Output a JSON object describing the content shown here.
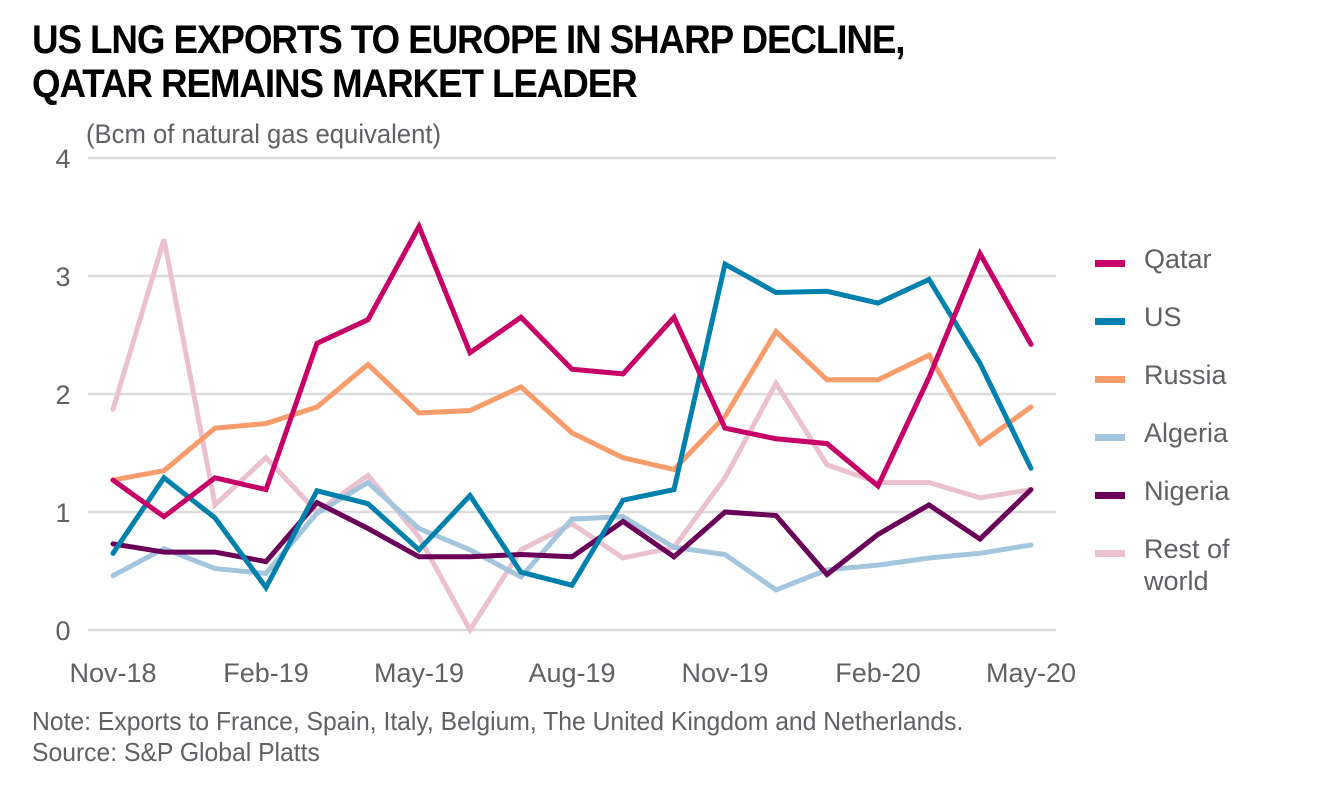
{
  "title_lines": [
    "US LNG EXPORTS TO EUROPE IN SHARP DECLINE,",
    "QATAR REMAINS MARKET LEADER"
  ],
  "footer": {
    "note": "Note: Exports to France, Spain, Italy, Belgium, The United Kingdom and Netherlands.",
    "source": "Source: S&P Global Platts"
  },
  "chart_data": {
    "type": "line",
    "title": "US LNG EXPORTS TO EUROPE IN SHARP DECLINE, QATAR REMAINS MARKET LEADER",
    "ylabel": "(Bcm of natural gas equivalent)",
    "xlabel": "",
    "ylim": [
      0,
      4
    ],
    "yticks": [
      "0",
      "1",
      "2",
      "3",
      "4"
    ],
    "grid": true,
    "legend_position": "right",
    "x": [
      "Nov-18",
      "Dec-18",
      "Jan-19",
      "Feb-19",
      "Mar-19",
      "Apr-19",
      "May-19",
      "Jun-19",
      "Jul-19",
      "Aug-19",
      "Sep-19",
      "Oct-19",
      "Nov-19",
      "Dec-19",
      "Jan-20",
      "Feb-20",
      "Mar-20",
      "Apr-20",
      "May-20"
    ],
    "xtick_labels": [
      "Nov-18",
      "Feb-19",
      "May-19",
      "Aug-19",
      "Nov-19",
      "Feb-20",
      "May-20"
    ],
    "series": [
      {
        "name": "Rest of world",
        "legend_label": [
          "Rest of",
          "world"
        ],
        "color": "#ecc1cf",
        "values": [
          1.87,
          3.31,
          1.06,
          1.46,
          1.0,
          1.31,
          0.79,
          0.0,
          0.68,
          0.9,
          0.61,
          0.7,
          1.29,
          2.09,
          1.4,
          1.25,
          1.25,
          1.12,
          1.19
        ]
      },
      {
        "name": "Algeria",
        "legend_label": [
          "Algeria"
        ],
        "color": "#a3c6de",
        "values": [
          0.46,
          0.69,
          0.52,
          0.48,
          0.99,
          1.25,
          0.86,
          0.68,
          0.45,
          0.94,
          0.96,
          0.7,
          0.64,
          0.34,
          0.51,
          0.55,
          0.61,
          0.65,
          0.72
        ]
      },
      {
        "name": "Nigeria",
        "legend_label": [
          "Nigeria"
        ],
        "color": "#6b0059",
        "values": [
          0.73,
          0.66,
          0.66,
          0.58,
          1.08,
          0.86,
          0.62,
          0.62,
          0.64,
          0.62,
          0.92,
          0.62,
          1.0,
          0.97,
          0.47,
          0.81,
          1.06,
          0.77,
          1.19
        ]
      },
      {
        "name": "Russia",
        "legend_label": [
          "Russia"
        ],
        "color": "#f99c6b",
        "values": [
          1.27,
          1.35,
          1.71,
          1.75,
          1.89,
          2.25,
          1.84,
          1.86,
          2.06,
          1.67,
          1.46,
          1.36,
          1.81,
          2.53,
          2.12,
          2.12,
          2.33,
          1.58,
          1.89
        ]
      },
      {
        "name": "US",
        "legend_label": [
          "US"
        ],
        "color": "#0080ad",
        "values": [
          0.65,
          1.29,
          0.95,
          0.36,
          1.18,
          1.07,
          0.68,
          1.14,
          0.49,
          0.38,
          1.1,
          1.19,
          3.1,
          2.86,
          2.87,
          2.77,
          2.97,
          2.26,
          1.37
        ]
      },
      {
        "name": "Qatar",
        "legend_label": [
          "Qatar"
        ],
        "color": "#c70067",
        "values": [
          1.27,
          0.96,
          1.29,
          1.19,
          2.43,
          2.63,
          3.42,
          2.35,
          2.65,
          2.21,
          2.17,
          2.65,
          1.71,
          1.62,
          1.58,
          1.22,
          2.14,
          3.19,
          2.42
        ]
      }
    ],
    "legend_order": [
      "Qatar",
      "US",
      "Russia",
      "Algeria",
      "Nigeria",
      "Rest of world"
    ]
  }
}
